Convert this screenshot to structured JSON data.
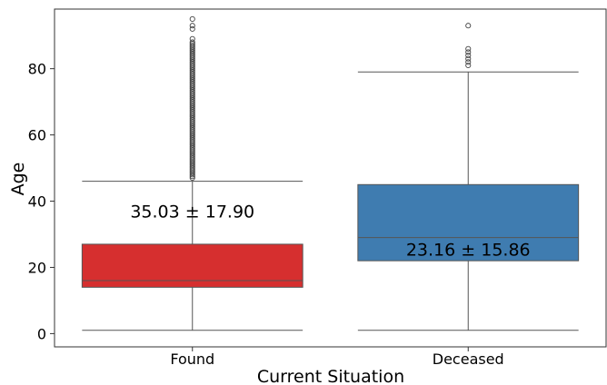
{
  "chart_data": {
    "type": "box",
    "xlabel": "Current Situation",
    "ylabel": "Age",
    "ylim": [
      -4,
      98
    ],
    "yticks": [
      0,
      20,
      40,
      60,
      80
    ],
    "categories": [
      "Found",
      "Deceased"
    ],
    "boxes": [
      {
        "category": "Found",
        "color": "#d62f2f",
        "whisker_low": 1,
        "q1": 14,
        "median": 16,
        "q3": 27,
        "whisker_high": 46,
        "outliers": [
          47,
          47.5,
          48,
          48.5,
          49,
          49.5,
          50,
          50.5,
          51,
          51.5,
          52,
          52.5,
          53,
          53.5,
          54,
          54.5,
          55,
          55.5,
          56,
          56.5,
          57,
          57.5,
          58,
          58.5,
          59,
          59.5,
          60,
          60.5,
          61,
          61.5,
          62,
          62.5,
          63,
          63.5,
          64,
          64.5,
          65,
          65.5,
          66,
          66.5,
          67,
          67.5,
          68,
          68.5,
          69,
          69.5,
          70,
          70.5,
          71,
          71.5,
          72,
          72.5,
          73,
          73.5,
          74,
          74.5,
          75,
          75.5,
          76,
          76.5,
          77,
          77.5,
          78,
          78.5,
          79,
          79.5,
          80,
          80.5,
          81,
          81.5,
          82,
          82.5,
          83,
          83.5,
          84,
          84.5,
          85,
          85.5,
          86,
          86.5,
          87,
          87.5,
          88,
          89,
          92,
          93,
          95
        ],
        "annotation": "35.03 ± 17.90",
        "annotation_y": 37
      },
      {
        "category": "Deceased",
        "color": "#3f7cb0",
        "whisker_low": 1,
        "q1": 22,
        "median": 29,
        "q3": 45,
        "whisker_high": 79,
        "outliers": [
          81,
          82,
          83,
          84,
          85,
          86,
          93
        ],
        "annotation": "23.16 ± 15.86",
        "annotation_y": 25.5
      }
    ]
  }
}
